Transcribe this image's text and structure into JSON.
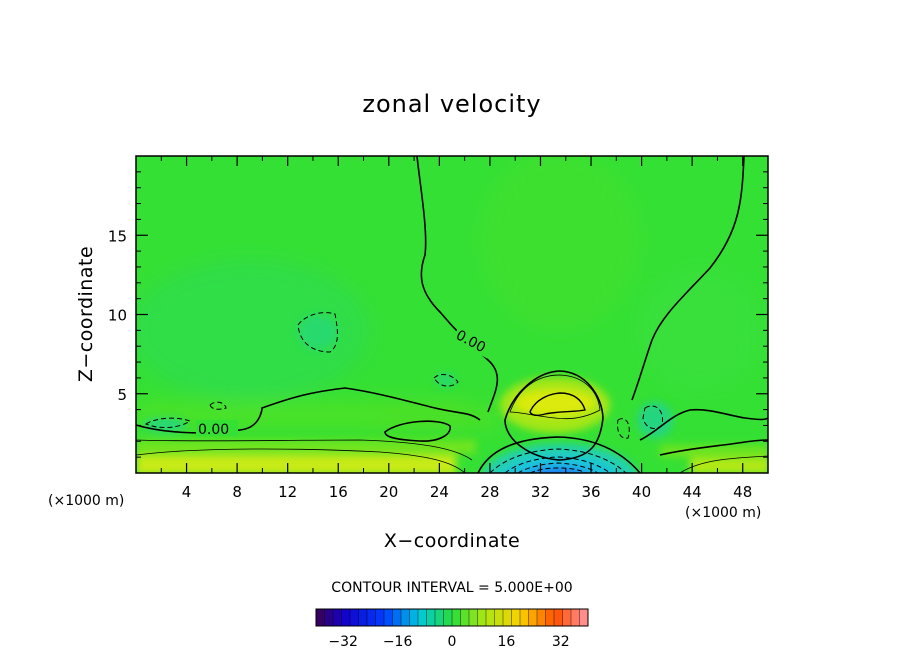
{
  "chart_data": {
    "type": "heatmap",
    "title": "zonal velocity",
    "xlabel": "X−coordinate",
    "ylabel": "Z−coordinate",
    "x_unit_left": "(×1000 m)",
    "x_unit_right": "(×1000 m)",
    "xlim": [
      0,
      50
    ],
    "ylim": [
      0,
      20
    ],
    "x_ticks": [
      4,
      8,
      12,
      16,
      20,
      24,
      28,
      32,
      36,
      40,
      44,
      48
    ],
    "y_ticks": [
      5,
      10,
      15
    ],
    "zero_contour_labels": [
      "0.00",
      "0.00"
    ],
    "contour_interval_text": "CONTOUR INTERVAL = 5.000E+00",
    "colorbar": {
      "min": -40,
      "max": 40,
      "step": 2.5,
      "tick_values": [
        -32,
        -16,
        0,
        16,
        32
      ],
      "tick_labels": [
        "−32",
        "−16",
        "0",
        "16",
        "32"
      ]
    },
    "features": [
      {
        "name": "strong negative jet",
        "x": 33,
        "z": 0.2,
        "value": -30
      },
      {
        "name": "positive lobe",
        "x": 33,
        "z": 4.8,
        "value": 12
      },
      {
        "name": "surface positive flow",
        "x": 4,
        "z": 0.5,
        "value": 12
      },
      {
        "name": "surface positive flow",
        "x": 46,
        "z": 0.4,
        "value": 10
      },
      {
        "name": "weak negative patch",
        "x": 14.5,
        "z": 9,
        "value": -3
      }
    ],
    "grid": false
  },
  "colors": {
    "background": "#35e035",
    "plot_frame": "#000000"
  }
}
